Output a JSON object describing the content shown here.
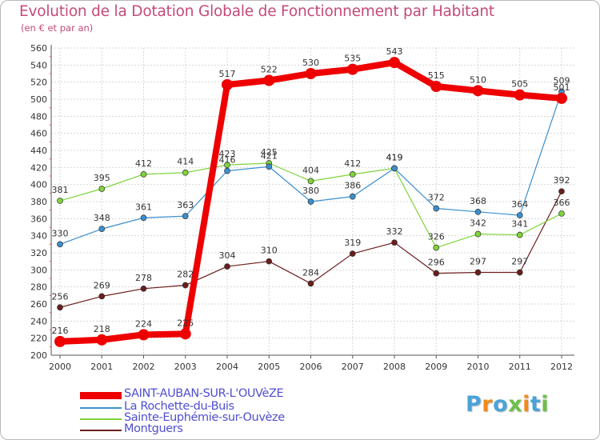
{
  "header": {
    "title": "Evolution de la Dotation Globale de Fonctionnement par Habitant",
    "subtitle": "(en € et par an)"
  },
  "logo": {
    "text": "Proxiti",
    "chars": [
      "P",
      "r",
      "o",
      "x",
      "i",
      "t",
      "i"
    ],
    "colors": [
      "#4aa3d8",
      "#f08a1c",
      "#4aa3d8",
      "#6cc04a",
      "#f08a1c",
      "#4aa3d8",
      "#6cc04a"
    ]
  },
  "chart_data": {
    "type": "line",
    "title": "Evolution de la Dotation Globale de Fonctionnement par Habitant",
    "subtitle": "(en € et par an)",
    "xlabel": "",
    "ylabel": "",
    "categories": [
      "2000",
      "2001",
      "2002",
      "2003",
      "2004",
      "2005",
      "2006",
      "2007",
      "2008",
      "2009",
      "2010",
      "2011",
      "2012"
    ],
    "ylim": [
      200,
      560
    ],
    "yticks": [
      200,
      220,
      240,
      260,
      280,
      300,
      320,
      340,
      360,
      380,
      400,
      420,
      440,
      460,
      480,
      500,
      520,
      540,
      560
    ],
    "grid": true,
    "legend_position": "bottom-left",
    "series": [
      {
        "name": "SAINT-AUBAN-SUR-L'OUVèZE",
        "color": "#ee0000",
        "values": [
          216,
          218,
          224,
          225,
          517,
          522,
          530,
          535,
          543,
          515,
          510,
          505,
          501
        ],
        "labels": [
          "216",
          "218",
          "224",
          "225",
          "517",
          "522",
          "530",
          "535",
          "543",
          "515",
          "510",
          "505",
          "501"
        ]
      },
      {
        "name": "La Rochette-du-Buis",
        "color": "#3b8fce",
        "values": [
          330,
          348,
          361,
          363,
          416,
          421,
          380,
          386,
          419,
          372,
          368,
          364,
          509
        ],
        "labels": [
          "330",
          "348",
          "361",
          "363",
          "416",
          "421",
          "380",
          "386",
          "419",
          "372",
          "368",
          "364",
          "509"
        ]
      },
      {
        "name": "Sainte-Euphémie-sur-Ouvèze",
        "color": "#7fd43a",
        "values": [
          381,
          395,
          412,
          414,
          423,
          425,
          404,
          412,
          419,
          326,
          342,
          341,
          366
        ],
        "labels": [
          "381",
          "395",
          "412",
          "414",
          "423",
          "425",
          "404",
          "412",
          "419",
          "326",
          "342",
          "341",
          "366"
        ]
      },
      {
        "name": "Montguers",
        "color": "#6b1d1d",
        "values": [
          256,
          269,
          278,
          282,
          304,
          310,
          284,
          319,
          332,
          296,
          297,
          297,
          392
        ],
        "labels": [
          "256",
          "269",
          "278",
          "282",
          "304",
          "310",
          "284",
          "319",
          "332",
          "296",
          "297",
          "297",
          "392"
        ]
      }
    ]
  }
}
